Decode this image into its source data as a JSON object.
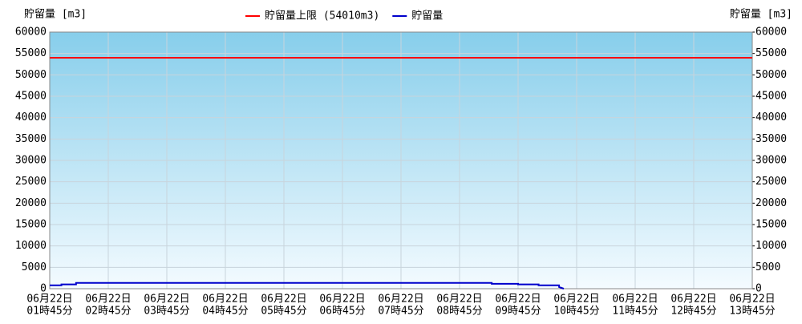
{
  "chart_data": {
    "type": "line",
    "ylabel": "貯留量 [m3]",
    "y2label": "貯留量 [m3]",
    "xlim": [
      1.75,
      13.75
    ],
    "xticks": [
      {
        "value": 1.75,
        "label": [
          "06月22日",
          "01時45分"
        ]
      },
      {
        "value": 2.75,
        "label": [
          "06月22日",
          "02時45分"
        ]
      },
      {
        "value": 3.75,
        "label": [
          "06月22日",
          "03時45分"
        ]
      },
      {
        "value": 4.75,
        "label": [
          "06月22日",
          "04時45分"
        ]
      },
      {
        "value": 5.75,
        "label": [
          "06月22日",
          "05時45分"
        ]
      },
      {
        "value": 6.75,
        "label": [
          "06月22日",
          "06時45分"
        ]
      },
      {
        "value": 7.75,
        "label": [
          "06月22日",
          "07時45分"
        ]
      },
      {
        "value": 8.75,
        "label": [
          "06月22日",
          "08時45分"
        ]
      },
      {
        "value": 9.75,
        "label": [
          "06月22日",
          "09時45分"
        ]
      },
      {
        "value": 10.75,
        "label": [
          "06月22日",
          "10時45分"
        ]
      },
      {
        "value": 11.75,
        "label": [
          "06月22日",
          "11時45分"
        ]
      },
      {
        "value": 12.75,
        "label": [
          "06月22日",
          "12時45分"
        ]
      },
      {
        "value": 13.75,
        "label": [
          "06月22日",
          "13時45分"
        ]
      }
    ],
    "ylim": [
      0,
      60000
    ],
    "yticks": [
      0,
      5000,
      10000,
      15000,
      20000,
      25000,
      30000,
      35000,
      40000,
      45000,
      50000,
      55000,
      60000
    ],
    "y2lim": [
      0,
      60000
    ],
    "y2ticks": [
      0,
      5000,
      10000,
      15000,
      20000,
      25000,
      30000,
      35000,
      40000,
      45000,
      50000,
      55000,
      60000
    ],
    "grid": true,
    "limit": {
      "name": "貯留量上限 (54010m3)",
      "color": "#ff0000",
      "value": 54010
    },
    "series": [
      {
        "name": "貯留量",
        "color": "#0000cc",
        "x": [
          1.75,
          1.95,
          1.95,
          2.2,
          2.2,
          9.3,
          9.3,
          9.75,
          9.75,
          10.1,
          10.1,
          10.45,
          10.45,
          10.53
        ],
        "values": [
          800,
          800,
          1000,
          1000,
          1350,
          1350,
          1150,
          1150,
          1000,
          1000,
          800,
          800,
          400,
          0
        ]
      }
    ]
  }
}
